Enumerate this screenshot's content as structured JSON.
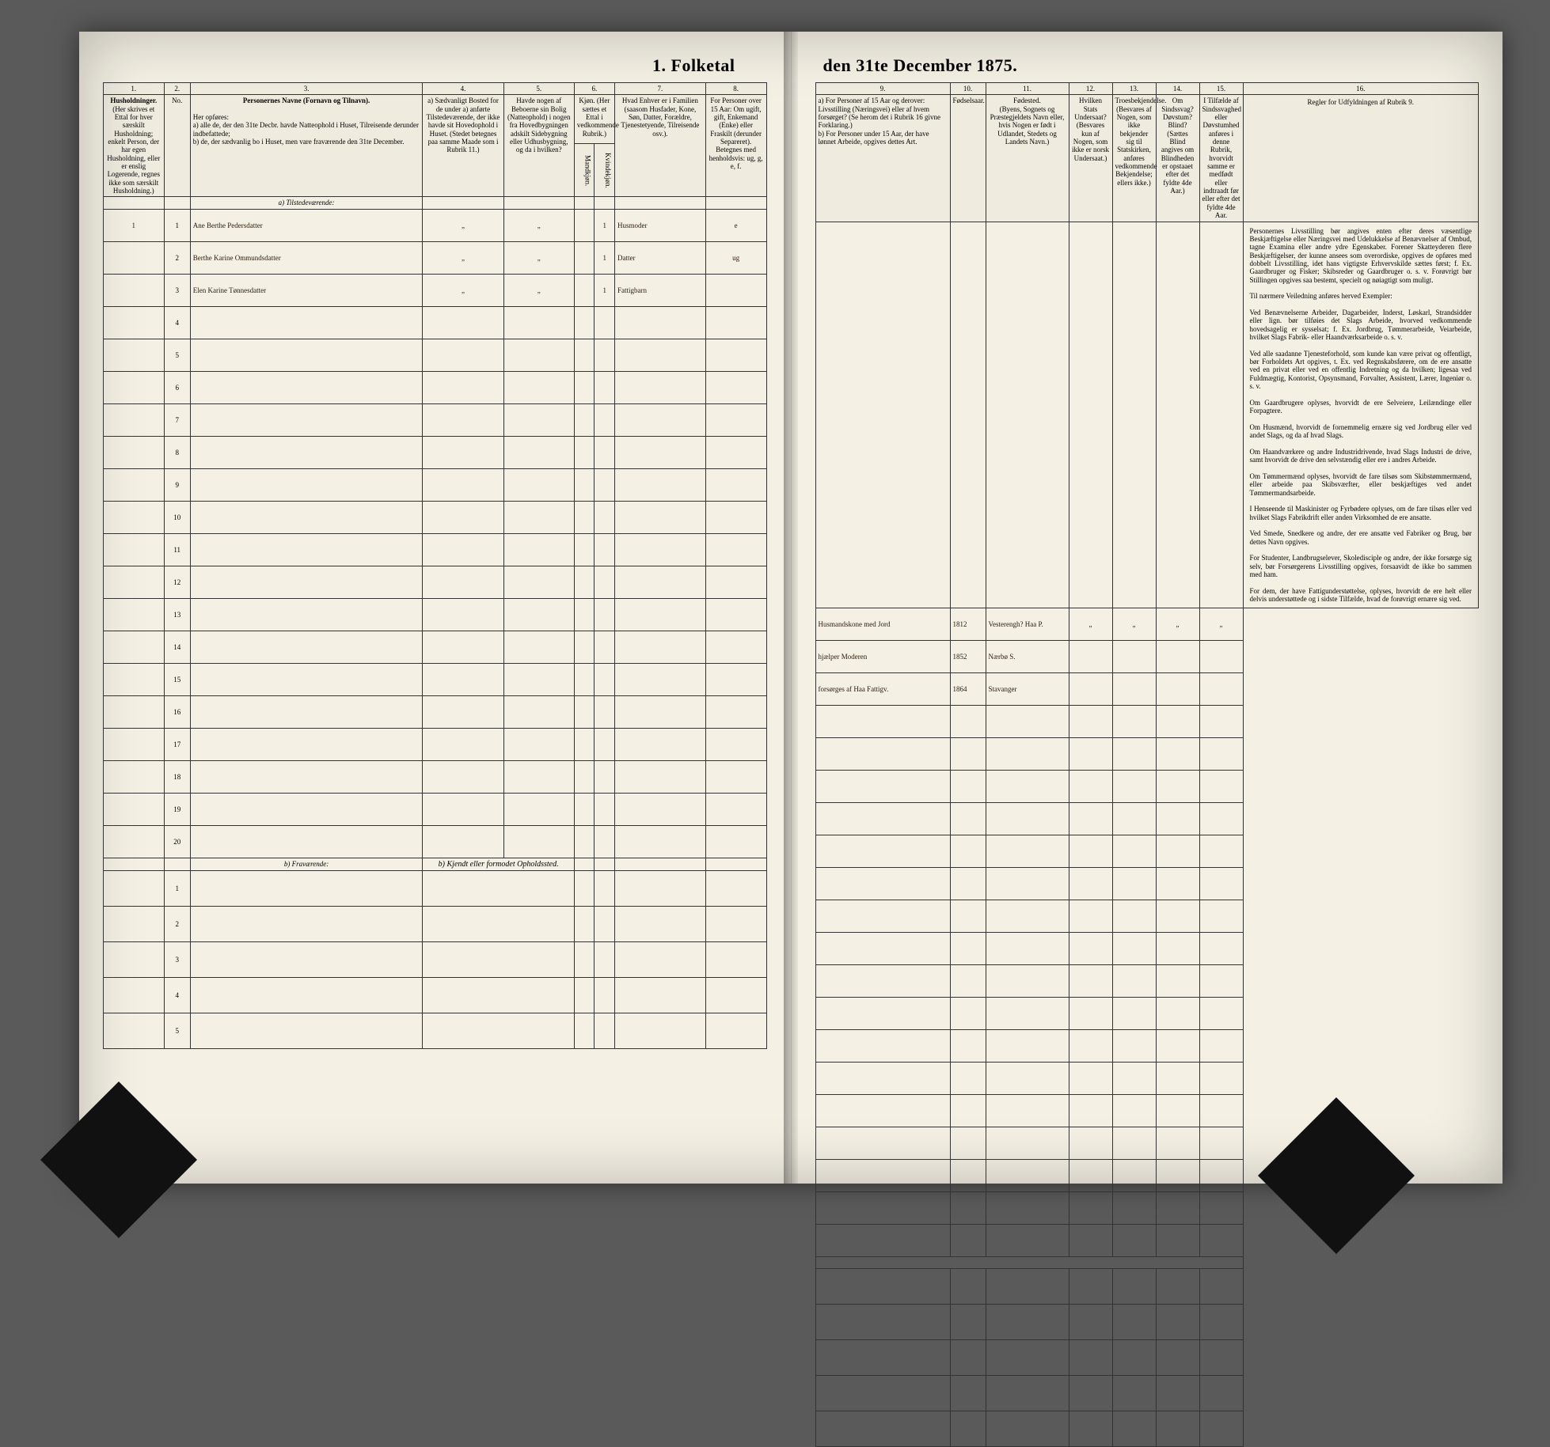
{
  "title_left": "1. Folketal",
  "title_right": "den 31te December 1875.",
  "columns_left": {
    "c1": "1.",
    "c2": "2.",
    "c3": "3.",
    "c4": "4.",
    "c5": "5.",
    "c6": "6.",
    "c7": "7.",
    "c8": "8.",
    "h1": "Husholdninger.",
    "h1_sub": "(Her skrives et Ettal for hver særskilt Husholdning; enkelt Person, der har egen Husholdning, eller er enslig Logerende, regnes ikke som særskilt Husholdning.)",
    "h2": "No.",
    "h3": "Personernes Navne (Fornavn og Tilnavn).",
    "h3_sub": "Her opføres:\na) alle de, der den 31te Decbr. havde Natteophold i Huset, Tilreisende derunder indbefattede;\nb) de, der sædvanlig bo i Huset, men vare fraværende den 31te December.",
    "h4": "a) Sædvanligt Bosted for de under a) anførte Tilstedeværende, der ikke havde sit Hovedophold i Huset. (Stedet betegnes paa samme Maade som i Rubrik 11.)",
    "h5": "Havde nogen af Beboerne sin Bolig (Natteophold) i nogen fra Hovedbygningen adskilt Sidebygning eller Udhusbygning, og da i hvilken?",
    "h6": "Kjøn. (Her sættes et Ettal i vedkommende Rubrik.)",
    "h6a": "Mandkjøn.",
    "h6b": "Kvindekjøn.",
    "h7": "Hvad Enhver er i Familien (saasom Husfader, Kone, Søn, Datter, Forældre, Tjenestetyende, Tilreisende osv.).",
    "h8": "For Personer over 15 Aar: Om ugift, gift, Enkemand (Enke) eller Fraskilt (derunder Separeret). Betegnes med henholdsvis: ug, g, e, f."
  },
  "columns_right": {
    "c9": "9.",
    "c10": "10.",
    "c11": "11.",
    "c12": "12.",
    "c13": "13.",
    "c14": "14.",
    "c15": "15.",
    "c16": "16.",
    "h9": "a) For Personer af 15 Aar og derover: Livsstilling (Næringsvei) eller af hvem forsørget? (Se herom det i Rubrik 16 givne Forklaring.)\nb) For Personer under 15 Aar, der have lønnet Arbeide, opgives dettes Art.",
    "h10": "Fødselsaar.",
    "h11": "Fødested.\n(Byens, Sognets og Præstegjeldets Navn eller, hvis Nogen er født i Udlandet, Stedets og Landets Navn.)",
    "h12": "Hvilken Stats Undersaat? (Besvares kun af Nogen, som ikke er norsk Undersaat.)",
    "h13": "Troesbekjendelse. (Besvares af Nogen, som ikke bekjender sig til Statskirken, anføres vedkommende Bekjendelse; ellers ikke.)",
    "h14": "Om Sindssvag? Døvstum? Blind? (Sættes Blind angives om Blindheden er opstaaet efter det fyldte 4de Aar.)",
    "h15": "I Tilfælde af Sindssvaghed eller Døvstumhed anføres i denne Rubrik, hvorvidt samme er medfødt eller indtraadt før eller efter det fyldte 4de Aar.",
    "h16": "Regler for Udfyldningen af Rubrik 9."
  },
  "section_a": "a) Tilstedeværende:",
  "section_b": "b) Fraværende:",
  "section_b_right": "b) Kjendt eller formodet Opholdssted.",
  "rows": [
    {
      "n": "1",
      "hh": "1",
      "name": "Ane Berthe Pedersdatter",
      "c4": "„",
      "c5": "„",
      "sexF": "1",
      "rel": "Husmoder",
      "civ": "e",
      "occ": "Husmandskone med Jord",
      "year": "1812",
      "place": "Vesterengh? Haa P.",
      "c12": "„",
      "c13": "„",
      "c14": "„",
      "c15": "„"
    },
    {
      "n": "2",
      "hh": "",
      "name": "Berthe Karine Ommundsdatter",
      "c4": "„",
      "c5": "„",
      "sexF": "1",
      "rel": "Datter",
      "civ": "ug",
      "occ": "hjælper Moderen",
      "year": "1852",
      "place": "Nærbø S.",
      "c12": "",
      "c13": "",
      "c14": "",
      "c15": ""
    },
    {
      "n": "3",
      "hh": "",
      "name": "Elen Karine Tønnesdatter",
      "c4": "„",
      "c5": "„",
      "sexF": "1",
      "rel": "Fattigbarn",
      "civ": "",
      "occ": "forsørges af Haa Fattigv.",
      "year": "1864",
      "place": "Stavanger",
      "c12": "",
      "c13": "",
      "c14": "",
      "c15": ""
    }
  ],
  "empty_rows": [
    "4",
    "5",
    "6",
    "7",
    "8",
    "9",
    "10",
    "11",
    "12",
    "13",
    "14",
    "15",
    "16",
    "17",
    "18",
    "19",
    "20"
  ],
  "fraværende_rows": [
    "1",
    "2",
    "3",
    "4",
    "5"
  ],
  "rules_text": "Personernes Livsstilling bør angives enten efter deres væsentlige Beskjæftigelse eller Næringsvei med Udelukkelse af Benævnelser af Ombud, tagne Examina eller andre ydre Egenskaber. Forener Skatteyderen flere Beskjæftigelser, der kunne ansees som overordiske, opgives de opføres med dobbelt Livsstilling, idet hans vigtigste Erhvervskilde sættes først; f. Ex. Gaardbruger og Fisker; Skibsreder og Gaardbruger o. s. v. Forøvrigt bør Stillingen opgives saa bestemt, specielt og nøiagtigt som muligt.\n\nTil nærmere Veiledning anføres herved Exempler:\n\nVed Benævnelserne Arbeider, Dagarbeider, Inderst, Løskarl, Strandsidder eller lign. bør tilføies det Slags Arbeide, hvorved vedkommende hovedsagelig er sysselsat; f. Ex. Jordbrug, Tømmerarbeide, Veiarbeide, hvilket Slags Fabrik- eller Haandværksarbeide o. s. v.\n\nVed alle saadanne Tjenesteforhold, som kunde kan være privat og offentligt, bør Forholdets Art opgives, t. Ex. ved Regnskabsførere, om de ere ansatte ved en privat eller ved en offentlig Indretning og da hvilken; ligesaa ved Fuldmægtig, Kontorist, Opsynsmand, Forvalter, Assistent, Lærer, Ingeniør o. s. v.\n\nOm Gaardbrugere oplyses, hvorvidt de ere Selveiere, Leilændinge eller Forpagtere.\n\nOm Husmænd, hvorvidt de fornemmelig ernære sig ved Jordbrug eller ved andet Slags, og da af hvad Slags.\n\nOm Haandværkere og andre Industridrivende, hvad Slags Industri de drive, samt hvorvidt de drive den selvstændig eller ere i andres Arbeide.\n\nOm Tømmermænd oplyses, hvorvidt de fare tilsøs som Skibstømmermænd, eller arbeide paa Skibsværfter, eller beskjæftiges ved andet Tømmermandsarbeide.\n\nI Henseende til Maskinister og Fyrbødere oplyses, om de fare tilsøs eller ved hvilket Slags Fabrikdrift eller anden Virksomhed de ere ansatte.\n\nVed Smede, Snedkere og andre, der ere ansatte ved Fabriker og Brug, bør dettes Navn opgives.\n\nFor Studenter, Landbrugselever, Skoledisciple og andre, der ikke forsørge sig selv, bør Forsørgerens Livsstilling opgives, forsaavidt de ikke bo sammen med ham.\n\nFor dem, der have Fattigunderstøttelse, oplyses, hvorvidt de ere helt eller delvis understøttede og i sidste Tilfælde, hvad de forøvrigt ernære sig ved."
}
